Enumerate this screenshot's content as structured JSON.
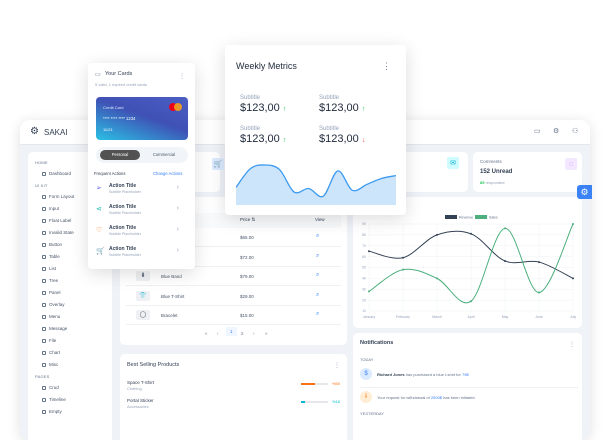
{
  "app": {
    "name": "SAKAI",
    "topbar_icons": [
      "calendar-icon",
      "settings-icon",
      "user-icon"
    ]
  },
  "sidebar": {
    "sections": [
      {
        "label": "HOME",
        "items": [
          "Dashboard"
        ]
      },
      {
        "label": "UI KIT",
        "items": [
          "Form Layout",
          "Input",
          "Float Label",
          "Invalid State",
          "Button",
          "Table",
          "List",
          "Tree",
          "Panel",
          "Overlay",
          "Menu",
          "Message",
          "File",
          "Chart",
          "Misc"
        ]
      },
      {
        "label": "PAGES",
        "items": [
          "Crud",
          "Timeline",
          "Empty"
        ]
      }
    ]
  },
  "stats": {
    "comments": {
      "title": "Comments",
      "value": "152 Unread",
      "highlight": "85",
      "suffix": "responded"
    }
  },
  "products": {
    "price_header": "Price",
    "view_header": "View",
    "rows": [
      {
        "name": "",
        "price": "$65.00"
      },
      {
        "name": "",
        "price": "$72.00"
      },
      {
        "name": "Blue Band",
        "price": "$79.00"
      },
      {
        "name": "Blue T-Shirt",
        "price": "$29.00"
      },
      {
        "name": "Bracelet",
        "price": "$15.00"
      }
    ],
    "pages": [
      "1",
      "2"
    ]
  },
  "best_selling": {
    "title": "Best Selling Products",
    "items": [
      {
        "name": "Space T-Shirt",
        "category": "Clothing",
        "percent": "%50",
        "value": 50,
        "color": "#f97316"
      },
      {
        "name": "Portal Sticker",
        "category": "Accessories",
        "percent": "%16",
        "value": 16,
        "color": "#06b6d4"
      }
    ]
  },
  "notifications": {
    "title": "Notifications",
    "today": "TODAY",
    "yesterday": "YESTERDAY",
    "items": [
      {
        "name": "Richard Jones",
        "text": "has purchased a blue t-shirt for",
        "amount": "79$"
      },
      {
        "pre": "Your request for withdrawal of",
        "amount": "2500$",
        "post": "has been initiated."
      }
    ]
  },
  "cards": {
    "title": "Your Cards",
    "subtitle": "5 valid, 1 expired credit cards",
    "card_label": "Credit Card",
    "card_number": "**** **** **** 1234",
    "card_expiry": "11/21",
    "brand": "mastercard",
    "tabs": [
      "Personal",
      "Commercial"
    ],
    "frequent": "Frequent Actions",
    "change": "Change Actions",
    "actions": [
      {
        "title": "Action Title",
        "subtitle": "Subtitle Placeholder",
        "icon": "send-icon",
        "color": "#6366f1"
      },
      {
        "title": "Action Title",
        "subtitle": "Subtitle Placeholder",
        "icon": "share-icon",
        "color": "#14b8a6"
      },
      {
        "title": "Action Title",
        "subtitle": "Subtitle Placeholder",
        "icon": "shield-icon",
        "color": "#f97316"
      },
      {
        "title": "Action Title",
        "subtitle": "Subtitle Placeholder",
        "icon": "cart-icon",
        "color": "#a855f7"
      }
    ]
  },
  "weekly": {
    "title": "Weekly Metrics",
    "metrics": [
      {
        "label": "Subtitle",
        "value": "$123,00",
        "trend": "up"
      },
      {
        "label": "Subtitle",
        "value": "$123,00",
        "trend": "up"
      },
      {
        "label": "Subtitle",
        "value": "$123,00",
        "trend": "up"
      },
      {
        "label": "Subtitle",
        "value": "$123,00",
        "trend": "down"
      }
    ]
  },
  "colors": {
    "primary": "#3b82f6",
    "up": "#22c55e",
    "down": "#ef4444",
    "revenue": "#334155",
    "sales": "#4caf7d"
  },
  "chart_data": [
    {
      "type": "line",
      "categories": [
        "January",
        "February",
        "March",
        "April",
        "May",
        "June",
        "July"
      ],
      "series": [
        {
          "name": "Revenue",
          "values": [
            65,
            59,
            80,
            81,
            56,
            55,
            40
          ]
        },
        {
          "name": "Sales",
          "values": [
            28,
            48,
            40,
            19,
            86,
            27,
            90
          ]
        }
      ],
      "ylim": [
        10,
        90
      ],
      "yticks": [
        "10",
        "20",
        "30",
        "40",
        "50",
        "60",
        "70",
        "80",
        "90"
      ],
      "grid": true,
      "legend": "top"
    },
    {
      "type": "area",
      "values": [
        30,
        62,
        68,
        60,
        22,
        28,
        15,
        58,
        25,
        35,
        45,
        50
      ],
      "grid": false,
      "legend": "none"
    }
  ]
}
